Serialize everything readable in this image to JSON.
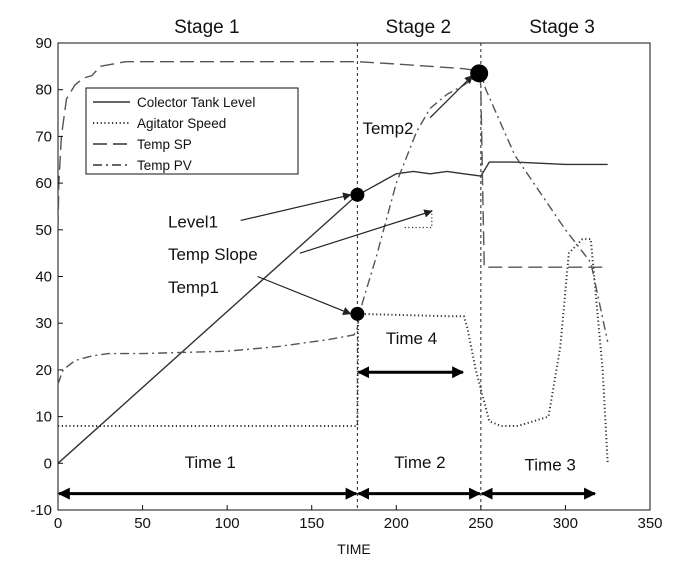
{
  "chart_data": {
    "type": "line",
    "xlabel": "TIME",
    "ylabel": "",
    "xlim": [
      0,
      350
    ],
    "ylim": [
      -10,
      90
    ],
    "xticks": [
      0,
      50,
      100,
      150,
      200,
      250,
      300,
      350
    ],
    "yticks": [
      -10,
      0,
      10,
      20,
      30,
      40,
      50,
      60,
      70,
      80,
      90
    ],
    "tick_labels_x": [
      "0",
      "50",
      "100",
      "150",
      "200",
      "250",
      "300",
      "350"
    ],
    "tick_labels_y": [
      "-10",
      "0",
      "10",
      "20",
      "30",
      "40",
      "50",
      "60",
      "70",
      "80",
      "90"
    ],
    "grid": false,
    "legend_position": "top-left",
    "stages": [
      {
        "label": "Stage 1",
        "x": 88
      },
      {
        "label": "Stage 2",
        "x": 213
      },
      {
        "label": "Stage 3",
        "x": 298
      }
    ],
    "stage_boundaries": [
      177,
      250
    ],
    "series": [
      {
        "name": "Colector Tank Level",
        "style": "solid",
        "color": "#333333",
        "x": [
          0,
          177,
          180,
          190,
          200,
          210,
          220,
          230,
          240,
          250,
          255,
          270,
          300,
          325
        ],
        "y": [
          0,
          57.5,
          58,
          60,
          62,
          62.5,
          62,
          62.5,
          62,
          61.5,
          64.5,
          64.5,
          64,
          64
        ]
      },
      {
        "name": "Agitator Speed",
        "style": "dotted",
        "color": "#333333",
        "x": [
          0,
          175,
          177,
          177.5,
          230,
          240,
          242,
          247,
          255,
          262,
          272,
          290,
          297,
          302,
          310,
          315,
          322,
          325
        ],
        "y": [
          8,
          8,
          8,
          32,
          31.5,
          31.5,
          29,
          20,
          9,
          8,
          8,
          10,
          25,
          45,
          48,
          48,
          20,
          0
        ]
      },
      {
        "name": "Temp SP",
        "style": "dashed",
        "color": "#555555",
        "x": [
          0,
          0.5,
          2,
          5,
          10,
          15,
          20,
          25,
          40,
          100,
          150,
          177,
          200,
          240,
          249,
          249.5,
          250,
          251,
          252,
          300,
          325
        ],
        "y": [
          50,
          60,
          70,
          78,
          81,
          82.5,
          83,
          85,
          86,
          86,
          86,
          86,
          85.5,
          84.5,
          84,
          83.5,
          80,
          60,
          42,
          42,
          42
        ]
      },
      {
        "name": "Temp PV",
        "style": "dash-dot",
        "color": "#555555",
        "x": [
          0,
          3,
          10,
          20,
          30,
          50,
          100,
          130,
          160,
          175,
          177,
          178,
          188,
          200,
          212,
          220,
          230,
          240,
          248,
          250,
          253,
          270,
          285,
          300,
          315,
          325
        ],
        "y": [
          17,
          20,
          22,
          23,
          23.5,
          23.5,
          24,
          25,
          26.5,
          27.5,
          29,
          32,
          44,
          60,
          71,
          76,
          79,
          81,
          83,
          83.5,
          80,
          66,
          58,
          50,
          43,
          26
        ]
      }
    ],
    "points": [
      {
        "name": "Level1",
        "x": 177,
        "y": 57.5
      },
      {
        "name": "Temp1",
        "x": 177,
        "y": 32
      },
      {
        "name": "Temp2",
        "x": 249,
        "y": 83.5
      }
    ],
    "annotations": [
      {
        "text": "Level1",
        "label_x": 65,
        "label_y": 50.5,
        "arrow_from": [
          108,
          52
        ],
        "arrow_to": [
          173,
          57.5
        ]
      },
      {
        "text": "Temp Slope",
        "label_x": 65,
        "label_y": 43.5,
        "arrow_from": [
          143,
          45
        ],
        "arrow_to": [
          221,
          54
        ]
      },
      {
        "text": "Temp1",
        "label_x": 65,
        "label_y": 36.5,
        "arrow_from": [
          118,
          40
        ],
        "arrow_to": [
          173,
          32
        ]
      },
      {
        "text": "Temp2",
        "label_x": 180,
        "label_y": 70.5,
        "arrow_from": [
          220,
          74
        ],
        "arrow_to": [
          245,
          83
        ]
      }
    ],
    "reference_lines": [
      {
        "type": "vertical",
        "x": 177
      },
      {
        "type": "vertical",
        "x": 250
      },
      {
        "type": "step",
        "x": [
          205,
          221,
          221
        ],
        "y": [
          50.5,
          50.5,
          54.5
        ]
      }
    ],
    "intervals": [
      {
        "label": "Time 1",
        "x0": 0,
        "x1": 177,
        "y": -6.5,
        "label_x": 90,
        "label_y": -1
      },
      {
        "label": "Time 2",
        "x0": 177,
        "x1": 250,
        "y": -6.5,
        "label_x": 214,
        "label_y": -1
      },
      {
        "label": "Time 3",
        "x0": 250,
        "x1": 318,
        "y": -6.5,
        "label_x": 291,
        "label_y": -1.5
      },
      {
        "label": "Time 4",
        "x0": 177,
        "x1": 240,
        "y": 19.5,
        "label_x": 209,
        "label_y": 25.5
      }
    ],
    "legend": [
      {
        "label": "Colector Tank Level",
        "style": "solid"
      },
      {
        "label": "Agitator Speed",
        "style": "dotted"
      },
      {
        "label": "Temp SP",
        "style": "dashed"
      },
      {
        "label": "Temp PV",
        "style": "dash-dot"
      }
    ]
  }
}
